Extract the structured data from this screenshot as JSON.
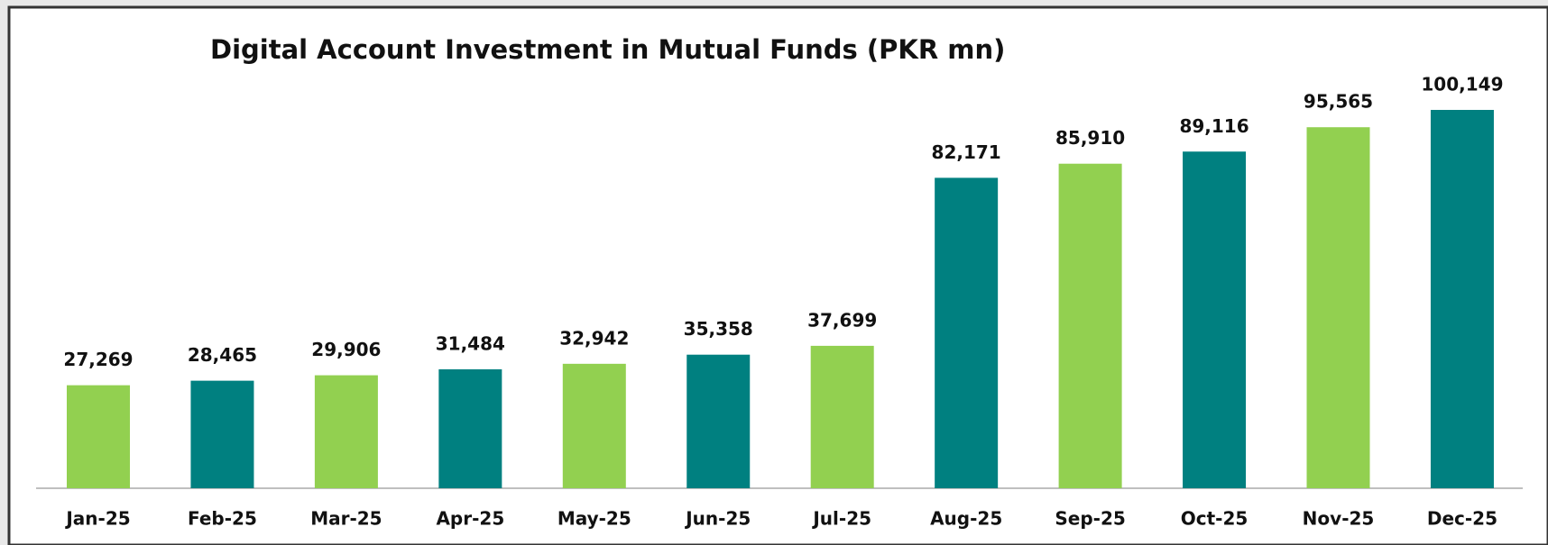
{
  "chart_data": {
    "type": "bar",
    "title": "Digital Account Investment in Mutual Funds (PKR mn)",
    "categories": [
      "Jan-25",
      "Feb-25",
      "Mar-25",
      "Apr-25",
      "May-25",
      "Jun-25",
      "Jul-25",
      "Aug-25",
      "Sep-25",
      "Oct-25",
      "Nov-25",
      "Dec-25"
    ],
    "values": [
      27269,
      28465,
      29906,
      31484,
      32942,
      35358,
      37699,
      82171,
      85910,
      89116,
      95565,
      100149
    ],
    "value_labels": [
      "27,269",
      "28,465",
      "29,906",
      "31,484",
      "32,942",
      "35,358",
      "37,699",
      "82,171",
      "85,910",
      "89,116",
      "95,565",
      "100,149"
    ],
    "colors": [
      "#92d050",
      "#008080",
      "#92d050",
      "#008080",
      "#92d050",
      "#008080",
      "#92d050",
      "#008080",
      "#92d050",
      "#008080",
      "#92d050",
      "#008080"
    ]
  }
}
